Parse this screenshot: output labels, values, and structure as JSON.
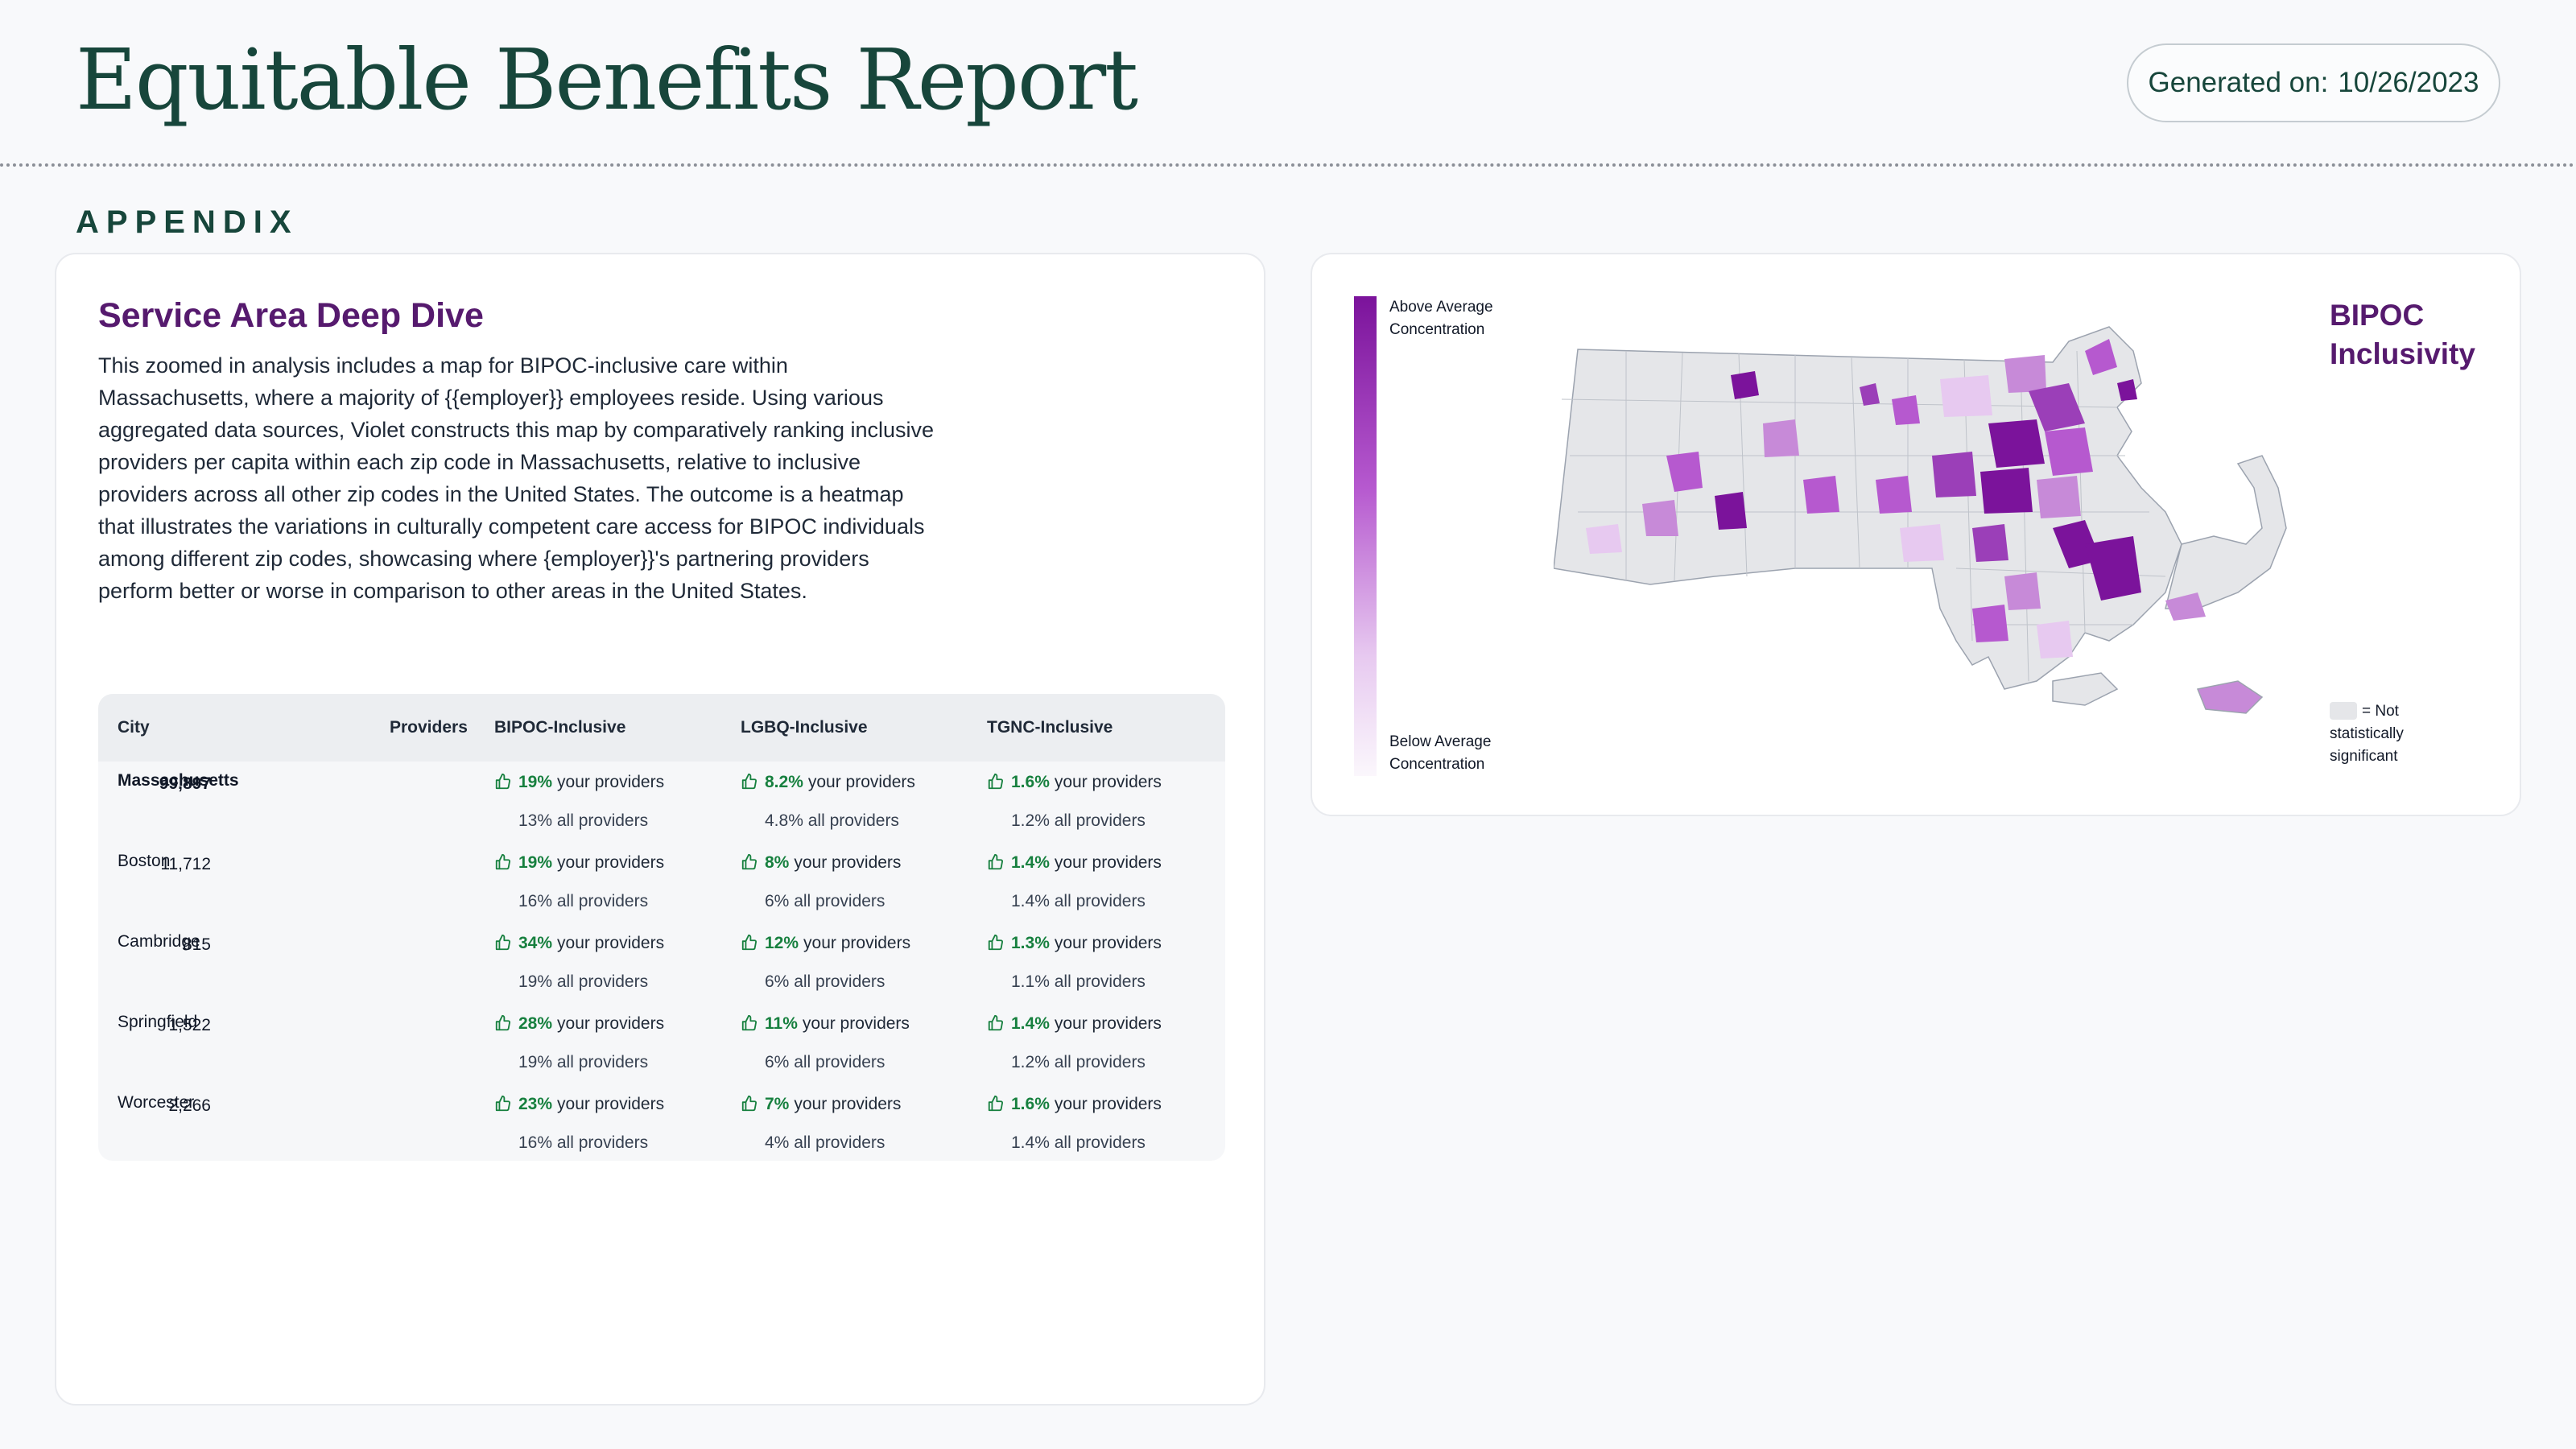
{
  "header": {
    "title": "Equitable Benefits Report",
    "generated_label": "Generated on:",
    "generated_date": "10/26/2023"
  },
  "section_label": "APPENDIX",
  "deep_dive": {
    "title": "Service Area Deep Dive",
    "description": "This zoomed in analysis includes a map for BIPOC-inclusive care within Massachusetts, where a majority of {{employer}} employees reside. Using various aggregated data sources, Violet constructs this map by comparatively ranking inclusive providers per capita within each zip code in Massachusetts, relative to inclusive providers across all other zip codes in the United States. The outcome is a heatmap that illustrates the variations in culturally competent care access for BIPOC  individuals among different zip codes, showcasing where {employer}}'s partnering providers perform better or worse in comparison to other areas in the United States."
  },
  "table": {
    "headers": {
      "city": "City",
      "providers": "Providers",
      "bipoc": "BIPOC-Inclusive",
      "lgbq": "LGBQ-Inclusive",
      "tgnc": "TGNC-Inclusive"
    },
    "your_suffix": "your providers",
    "all_suffix": "all providers",
    "rows": [
      {
        "city": "Massachusetts",
        "providers": "99,897",
        "bipoc_your": "19%",
        "bipoc_all": "13%",
        "lgbq_your": "8.2%",
        "lgbq_all": "4.8%",
        "tgnc_your": "1.6%",
        "tgnc_all": "1.2%"
      },
      {
        "city": "Boston",
        "providers": "11,712",
        "bipoc_your": "19%",
        "bipoc_all": "16%",
        "lgbq_your": "8%",
        "lgbq_all": "6%",
        "tgnc_your": "1.4%",
        "tgnc_all": "1.4%"
      },
      {
        "city": "Cambridge",
        "providers": "815",
        "bipoc_your": "34%",
        "bipoc_all": "19%",
        "lgbq_your": "12%",
        "lgbq_all": "6%",
        "tgnc_your": "1.3%",
        "tgnc_all": "1.1%"
      },
      {
        "city": "Springfield",
        "providers": "1,522",
        "bipoc_your": "28%",
        "bipoc_all": "19%",
        "lgbq_your": "11%",
        "lgbq_all": "6%",
        "tgnc_your": "1.4%",
        "tgnc_all": "1.2%"
      },
      {
        "city": "Worcester",
        "providers": "2,266",
        "bipoc_your": "23%",
        "bipoc_all": "16%",
        "lgbq_your": "7%",
        "lgbq_all": "4%",
        "tgnc_your": "1.6%",
        "tgnc_all": "1.4%"
      }
    ]
  },
  "map": {
    "title_line1": "BIPOC",
    "title_line2": "Inclusivity",
    "legend_top_line1": "Above Average",
    "legend_top_line2": "Concentration",
    "legend_bottom_line1": "Below Average",
    "legend_bottom_line2": "Concentration",
    "not_significant_line1": "= Not",
    "not_significant_line2": "statistically",
    "not_significant_line3": "significant",
    "colors": {
      "high": "#7b139b",
      "mid": "#b659cf",
      "low": "#e7c9f0",
      "not_significant": "#e5e6e9",
      "border": "#9ca3af"
    }
  },
  "colors": {
    "brand_green": "#17463b",
    "brand_purple": "#561a6e",
    "positive": "#17803f"
  }
}
